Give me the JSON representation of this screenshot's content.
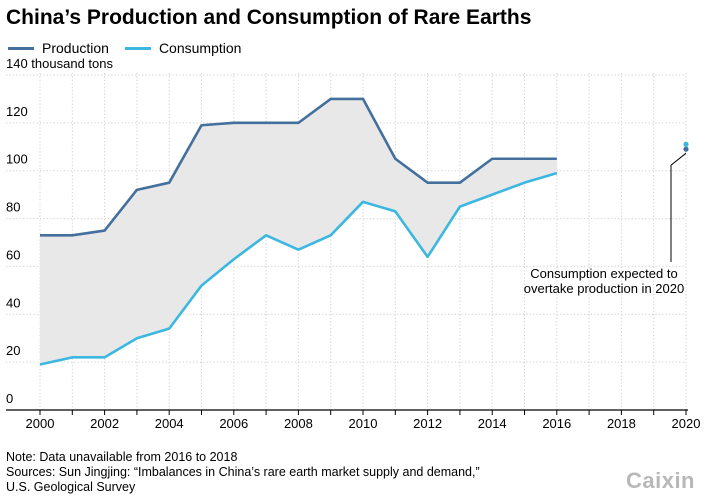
{
  "header": {
    "title": "China’s Production and Consumption of Rare Earths"
  },
  "legend": {
    "items": [
      {
        "label": "Production",
        "color": "#44709e"
      },
      {
        "label": "Consumption",
        "color": "#3bb7e0"
      }
    ]
  },
  "chart_data": {
    "type": "line",
    "title": "China’s Production and Consumption of Rare Earths",
    "ylabel": "140 thousand tons",
    "xlim": [
      2000,
      2020
    ],
    "ylim": [
      0,
      140
    ],
    "x_ticks": [
      "2000",
      "2002",
      "2004",
      "2006",
      "2008",
      "2010",
      "2012",
      "2014",
      "2016",
      "2018",
      "2020"
    ],
    "y_ticks": [
      "0",
      "20",
      "40",
      "60",
      "80",
      "100",
      "120",
      "140 thousand tons"
    ],
    "grid": true,
    "fill_between_series": true,
    "fill_color": "#e8e8e8",
    "series": [
      {
        "name": "Production",
        "color": "#44709e",
        "x": [
          2000,
          2001,
          2002,
          2003,
          2004,
          2005,
          2006,
          2007,
          2008,
          2009,
          2010,
          2011,
          2012,
          2013,
          2014,
          2015,
          2016
        ],
        "values": [
          73,
          73,
          75,
          92,
          95,
          119,
          120,
          120,
          120,
          130,
          130,
          105,
          95,
          95,
          105,
          105,
          105
        ]
      },
      {
        "name": "Consumption",
        "color": "#3bb7e0",
        "x": [
          2000,
          2001,
          2002,
          2003,
          2004,
          2005,
          2006,
          2007,
          2008,
          2009,
          2010,
          2011,
          2012,
          2013,
          2014,
          2015,
          2016
        ],
        "values": [
          19,
          22,
          22,
          30,
          34,
          52,
          63,
          73,
          67,
          73,
          87,
          83,
          64,
          85,
          90,
          95,
          99
        ]
      }
    ],
    "projection": {
      "x": 2020,
      "production": 109,
      "consumption": 111
    },
    "annotation": {
      "lines": [
        "Consumption expected to",
        "overtake production in 2020"
      ]
    }
  },
  "footer": {
    "note": "Note: Data unavailable from 2016 to 2018",
    "sources_line1": "Sources: Sun Jingjing: “Imbalances in China’s rare earth market supply and demand,”",
    "sources_line2": "U.S. Geological Survey",
    "logo": "Caixin"
  }
}
